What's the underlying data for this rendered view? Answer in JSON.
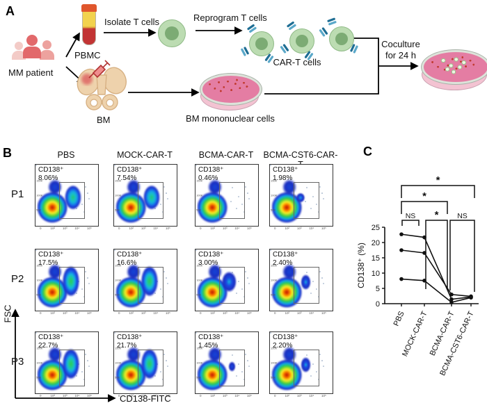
{
  "panelA": {
    "label": "A",
    "patient_label": "MM patient",
    "pbmc_label": "PBMC",
    "bm_label": "BM",
    "isolate_label": "Isolate T cells",
    "reprogram_label": "Reprogram T cells",
    "cart_label": "CAR-T cells",
    "bm_mono_label": "BM mononuclear cells",
    "coculture_line1": "Coculture",
    "coculture_line2": "for 24 h",
    "colors": {
      "patient_red": "#e2696b",
      "cell_green": "#bcdcb2",
      "receptor_blue": "#1f6e94",
      "dish_pink": "#e47da3",
      "marrow_red": "#dd5f5f"
    }
  },
  "panelB": {
    "label": "B",
    "columns": [
      "PBS",
      "MOCK-CAR-T",
      "BCMA-CAR-T",
      "BCMA-CST6-CAR-T"
    ],
    "rows": [
      "P1",
      "P2",
      "P3"
    ],
    "y_axis_label": "FSC",
    "x_axis_label": "CD138-FITC",
    "gate_label": "CD138⁺",
    "x_ticks": [
      "0",
      "10²",
      "10³",
      "10⁴",
      "10⁵"
    ],
    "y_ticks": [
      "150K",
      "100K",
      "50K"
    ],
    "plots": [
      {
        "row": "P1",
        "col": "PBS",
        "percent": "8.06%",
        "secondary": "medium"
      },
      {
        "row": "P1",
        "col": "MOCK-CAR-T",
        "percent": "7.54%",
        "secondary": "medium"
      },
      {
        "row": "P1",
        "col": "BCMA-CAR-T",
        "percent": "0.46%",
        "secondary": "none"
      },
      {
        "row": "P1",
        "col": "BCMA-CST6-CAR-T",
        "percent": "1.98%",
        "secondary": "nub"
      },
      {
        "row": "P2",
        "col": "PBS",
        "percent": "17.5%",
        "secondary": "large"
      },
      {
        "row": "P2",
        "col": "MOCK-CAR-T",
        "percent": "16.6%",
        "secondary": "large"
      },
      {
        "row": "P2",
        "col": "BCMA-CAR-T",
        "percent": "3.00%",
        "secondary": "smallplus"
      },
      {
        "row": "P2",
        "col": "BCMA-CST6-CAR-T",
        "percent": "2.40%",
        "secondary": "small"
      },
      {
        "row": "P3",
        "col": "PBS",
        "percent": "22.7%",
        "secondary": "large"
      },
      {
        "row": "P3",
        "col": "MOCK-CAR-T",
        "percent": "21.7%",
        "secondary": "large"
      },
      {
        "row": "P3",
        "col": "BCMA-CAR-T",
        "percent": "1.45%",
        "secondary": "tiny"
      },
      {
        "row": "P3",
        "col": "BCMA-CST6-CAR-T",
        "percent": "2.20%",
        "secondary": "small"
      }
    ]
  },
  "panelC": {
    "label": "C"
  },
  "chart_data": {
    "type": "line",
    "categories": [
      "PBS",
      "MOCK-CAR-T",
      "BCMA-CAR-T",
      "BCMA-CST6-CAR-T"
    ],
    "series": [
      {
        "name": "P1",
        "values": [
          8.06,
          7.54,
          0.46,
          1.98
        ]
      },
      {
        "name": "P2",
        "values": [
          17.5,
          16.6,
          3.0,
          2.4
        ]
      },
      {
        "name": "P3",
        "values": [
          22.7,
          21.7,
          1.45,
          2.2
        ]
      }
    ],
    "title": "",
    "xlabel": "",
    "ylabel": "CD138⁺ (%)",
    "ylim": [
      0,
      25
    ],
    "yticks": [
      0,
      5,
      10,
      15,
      20,
      25
    ],
    "grid": false,
    "legend": "none",
    "significance": [
      {
        "pair": "PBS vs MOCK-CAR-T",
        "label": "NS"
      },
      {
        "pair": "MOCK-CAR-T vs BCMA-CAR-T",
        "label": "*"
      },
      {
        "pair": "BCMA-CAR-T vs BCMA-CST6-CAR-T",
        "label": "NS"
      },
      {
        "pair": "PBS vs BCMA-CAR-T",
        "label": "*"
      },
      {
        "pair": "PBS vs BCMA-CST6-CAR-T",
        "label": "*"
      }
    ]
  }
}
